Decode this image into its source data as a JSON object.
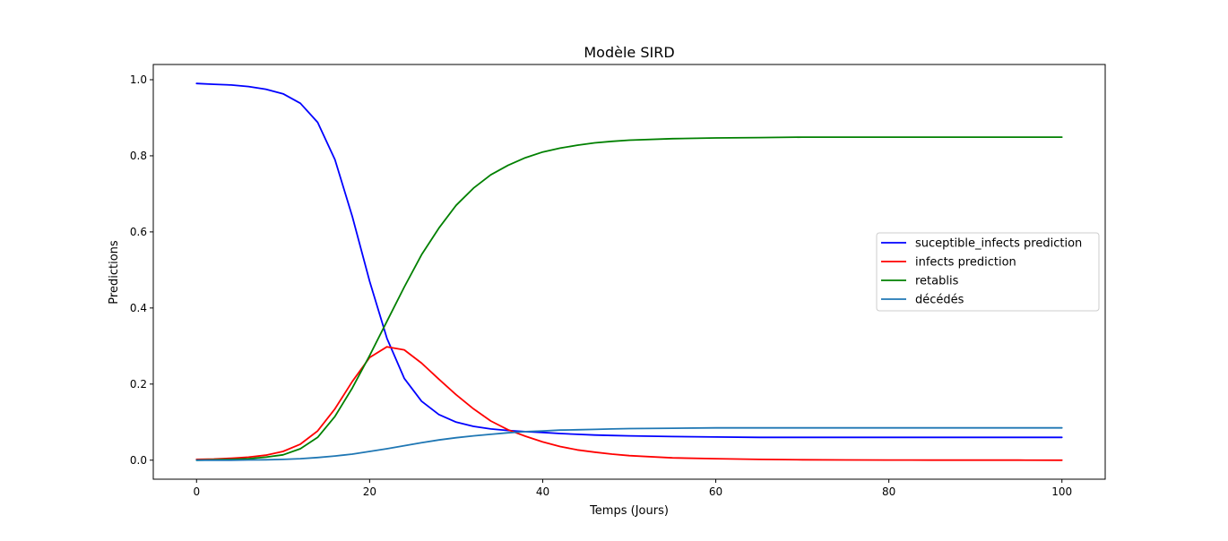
{
  "chart_data": {
    "type": "line",
    "title": "Modèle SIRD",
    "xlabel": "Temps (Jours)",
    "ylabel": "Predictions",
    "xlim": [
      -5,
      105
    ],
    "ylim": [
      -0.05,
      1.04
    ],
    "xticks": [
      0,
      20,
      40,
      60,
      80,
      100
    ],
    "yticks": [
      0.0,
      0.2,
      0.4,
      0.6,
      0.8,
      1.0
    ],
    "xtick_labels": [
      "0",
      "20",
      "40",
      "60",
      "80",
      "100"
    ],
    "ytick_labels": [
      "0.0",
      "0.2",
      "0.4",
      "0.6",
      "0.8",
      "1.0"
    ],
    "grid": false,
    "legend_position": "center-right",
    "x": [
      0,
      2,
      4,
      6,
      8,
      10,
      12,
      14,
      16,
      18,
      20,
      22,
      24,
      26,
      28,
      30,
      32,
      34,
      36,
      38,
      40,
      42,
      44,
      46,
      48,
      50,
      55,
      60,
      65,
      70,
      75,
      80,
      85,
      90,
      95,
      100
    ],
    "series": [
      {
        "name": "suceptible_infects prediction",
        "color": "#0000ff",
        "values": [
          0.99,
          0.988,
          0.986,
          0.982,
          0.975,
          0.963,
          0.938,
          0.888,
          0.79,
          0.64,
          0.47,
          0.32,
          0.215,
          0.155,
          0.12,
          0.1,
          0.089,
          0.082,
          0.078,
          0.075,
          0.073,
          0.07,
          0.068,
          0.066,
          0.065,
          0.064,
          0.062,
          0.061,
          0.06,
          0.06,
          0.06,
          0.06,
          0.06,
          0.06,
          0.06,
          0.06
        ]
      },
      {
        "name": "infects prediction",
        "color": "#ff0000",
        "values": [
          0.002,
          0.003,
          0.005,
          0.008,
          0.013,
          0.023,
          0.042,
          0.077,
          0.135,
          0.207,
          0.27,
          0.298,
          0.29,
          0.255,
          0.213,
          0.172,
          0.135,
          0.103,
          0.08,
          0.063,
          0.048,
          0.036,
          0.027,
          0.021,
          0.016,
          0.012,
          0.006,
          0.004,
          0.002,
          0.001,
          0.0005,
          0.0003,
          0.0002,
          0.0001,
          0.0001,
          0.0
        ]
      },
      {
        "name": "retablis",
        "color": "#008000",
        "values": [
          0.0,
          0.001,
          0.002,
          0.004,
          0.008,
          0.014,
          0.03,
          0.06,
          0.115,
          0.19,
          0.275,
          0.365,
          0.455,
          0.54,
          0.61,
          0.67,
          0.715,
          0.75,
          0.775,
          0.795,
          0.81,
          0.82,
          0.828,
          0.834,
          0.838,
          0.841,
          0.845,
          0.847,
          0.848,
          0.849,
          0.849,
          0.849,
          0.849,
          0.849,
          0.849,
          0.849
        ]
      },
      {
        "name": "décédés",
        "color": "#1f77b4",
        "values": [
          0.0,
          0.0,
          0.0,
          0.0005,
          0.001,
          0.002,
          0.004,
          0.007,
          0.011,
          0.016,
          0.023,
          0.03,
          0.038,
          0.046,
          0.053,
          0.059,
          0.064,
          0.068,
          0.072,
          0.075,
          0.077,
          0.079,
          0.08,
          0.081,
          0.082,
          0.083,
          0.084,
          0.085,
          0.085,
          0.085,
          0.085,
          0.085,
          0.085,
          0.085,
          0.085,
          0.085
        ]
      }
    ]
  }
}
